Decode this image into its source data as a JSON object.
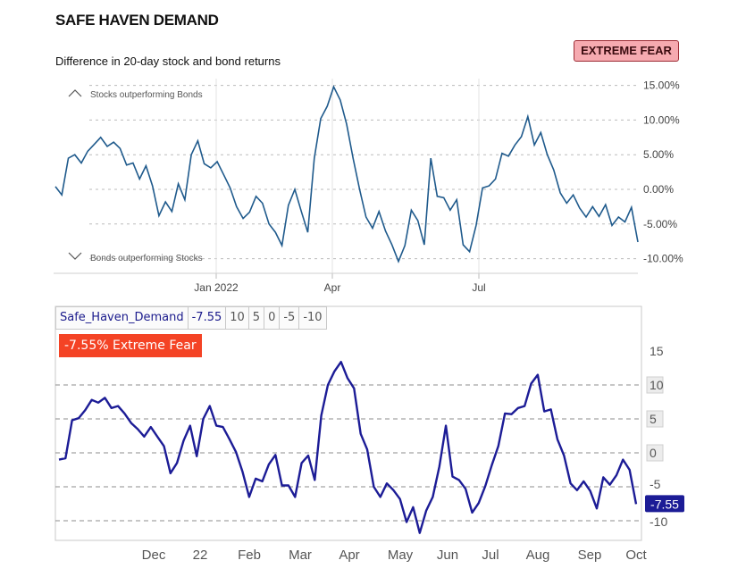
{
  "top": {
    "title": "SAFE HAVEN DEMAND",
    "subtitle": "Difference in 20-day stock and bond returns",
    "badge": "EXTREME FEAR",
    "upper_note": "Stocks outperforming Bonds",
    "lower_note": "Bonds outperforming Stocks",
    "colors": {
      "line": "#1f5a8c",
      "badge_bg": "#f6aab0",
      "badge_border": "#9e2d35"
    }
  },
  "bottom": {
    "legend": {
      "name": "Safe_Haven_Demand",
      "value": "-7.55",
      "levels": [
        "10",
        "5",
        "0",
        "-5",
        "-10"
      ]
    },
    "label": "-7.55%  Extreme Fear",
    "last_value": "-7.55",
    "colors": {
      "line": "#1c1c96",
      "label_bg": "#f44325",
      "box_bg": "#ececec",
      "last_bg": "#1c1c96"
    }
  },
  "chart_data": [
    {
      "type": "line",
      "title": "SAFE HAVEN DEMAND",
      "subtitle": "Difference in 20-day stock and bond returns",
      "x_tick_labels": [
        "Jan 2022",
        "Apr",
        "Jul"
      ],
      "y_tick_labels": [
        "15.00%",
        "10.00%",
        "5.00%",
        "0.00%",
        "-5.00%",
        "-10.00%"
      ],
      "y_ticks": [
        15,
        10,
        5,
        0,
        -5,
        -10
      ],
      "ylim": [
        -11,
        15
      ],
      "grid": true,
      "series": [
        {
          "values": [
            0.4,
            -0.8,
            4.5,
            5.0,
            3.8,
            5.5,
            6.5,
            7.5,
            6.2,
            6.8,
            5.9,
            3.5,
            3.8,
            1.5,
            3.4,
            0.5,
            -3.8,
            -1.8,
            -3.2,
            0.8,
            -1.5,
            5.0,
            7.0,
            3.7,
            3.1,
            4.0,
            2.1,
            0.2,
            -2.5,
            -4.2,
            -3.3,
            -1.0,
            -2.0,
            -5.0,
            -6.2,
            -8.1,
            -2.3,
            0.0,
            -3.2,
            -6.2,
            4.5,
            10.2,
            12.0,
            14.8,
            12.9,
            9.4,
            4.5,
            0.0,
            -4.0,
            -5.6,
            -3.2,
            -6.0,
            -8.0,
            -10.4,
            -8.1,
            -3.0,
            -4.5,
            -8.0,
            4.5,
            -1.0,
            -1.2,
            -3.0,
            -1.5,
            -8.0,
            -9.0,
            -5.2,
            0.2,
            0.5,
            1.5,
            5.2,
            4.8,
            6.4,
            7.6,
            10.5,
            6.4,
            8.2,
            5.0,
            2.8,
            -0.5,
            -2.0,
            -0.8,
            -2.7,
            -4.0,
            -2.5,
            -3.9,
            -2.2,
            -5.2,
            -4.0,
            -4.7,
            -2.6,
            -7.6
          ]
        }
      ]
    },
    {
      "type": "line",
      "x_tick_labels": [
        "Dec",
        "22",
        "Feb",
        "Mar",
        "Apr",
        "May",
        "Jun",
        "Jul",
        "Aug",
        "Sep",
        "Oct"
      ],
      "y_tick_labels": [
        "15",
        "10",
        "5",
        "0",
        "-5",
        "-10"
      ],
      "y_ticks": [
        15,
        10,
        5,
        0,
        -5,
        -10
      ],
      "ylim": [
        -12,
        17
      ],
      "grid": true,
      "series": [
        {
          "name": "Safe_Haven_Demand",
          "values": [
            -1.0,
            -0.8,
            4.8,
            5.1,
            6.3,
            7.8,
            7.4,
            8.1,
            6.6,
            6.9,
            5.8,
            4.4,
            3.5,
            2.4,
            3.8,
            2.4,
            1.0,
            -3.0,
            -1.5,
            1.8,
            4.0,
            -0.5,
            5.0,
            6.9,
            4.0,
            3.8,
            2.0,
            0.1,
            -2.8,
            -6.5,
            -3.8,
            -4.2,
            -1.7,
            -0.3,
            -4.8,
            -4.8,
            -6.5,
            -1.5,
            -0.4,
            -4.0,
            5.5,
            10.0,
            12.0,
            13.4,
            11.0,
            9.5,
            2.8,
            0.5,
            -5.0,
            -6.5,
            -4.5,
            -5.5,
            -6.8,
            -10.2,
            -8.0,
            -11.8,
            -8.5,
            -6.5,
            -2.0,
            4.0,
            -3.5,
            -4.0,
            -5.3,
            -8.8,
            -7.4,
            -4.9,
            -1.8,
            1.0,
            5.8,
            5.7,
            6.6,
            6.9,
            10.2,
            11.5,
            6.1,
            6.4,
            2.0,
            -0.4,
            -4.5,
            -5.5,
            -4.2,
            -5.6,
            -8.2,
            -3.6,
            -4.7,
            -3.3,
            -1.0,
            -2.5,
            -7.55
          ]
        }
      ]
    }
  ]
}
